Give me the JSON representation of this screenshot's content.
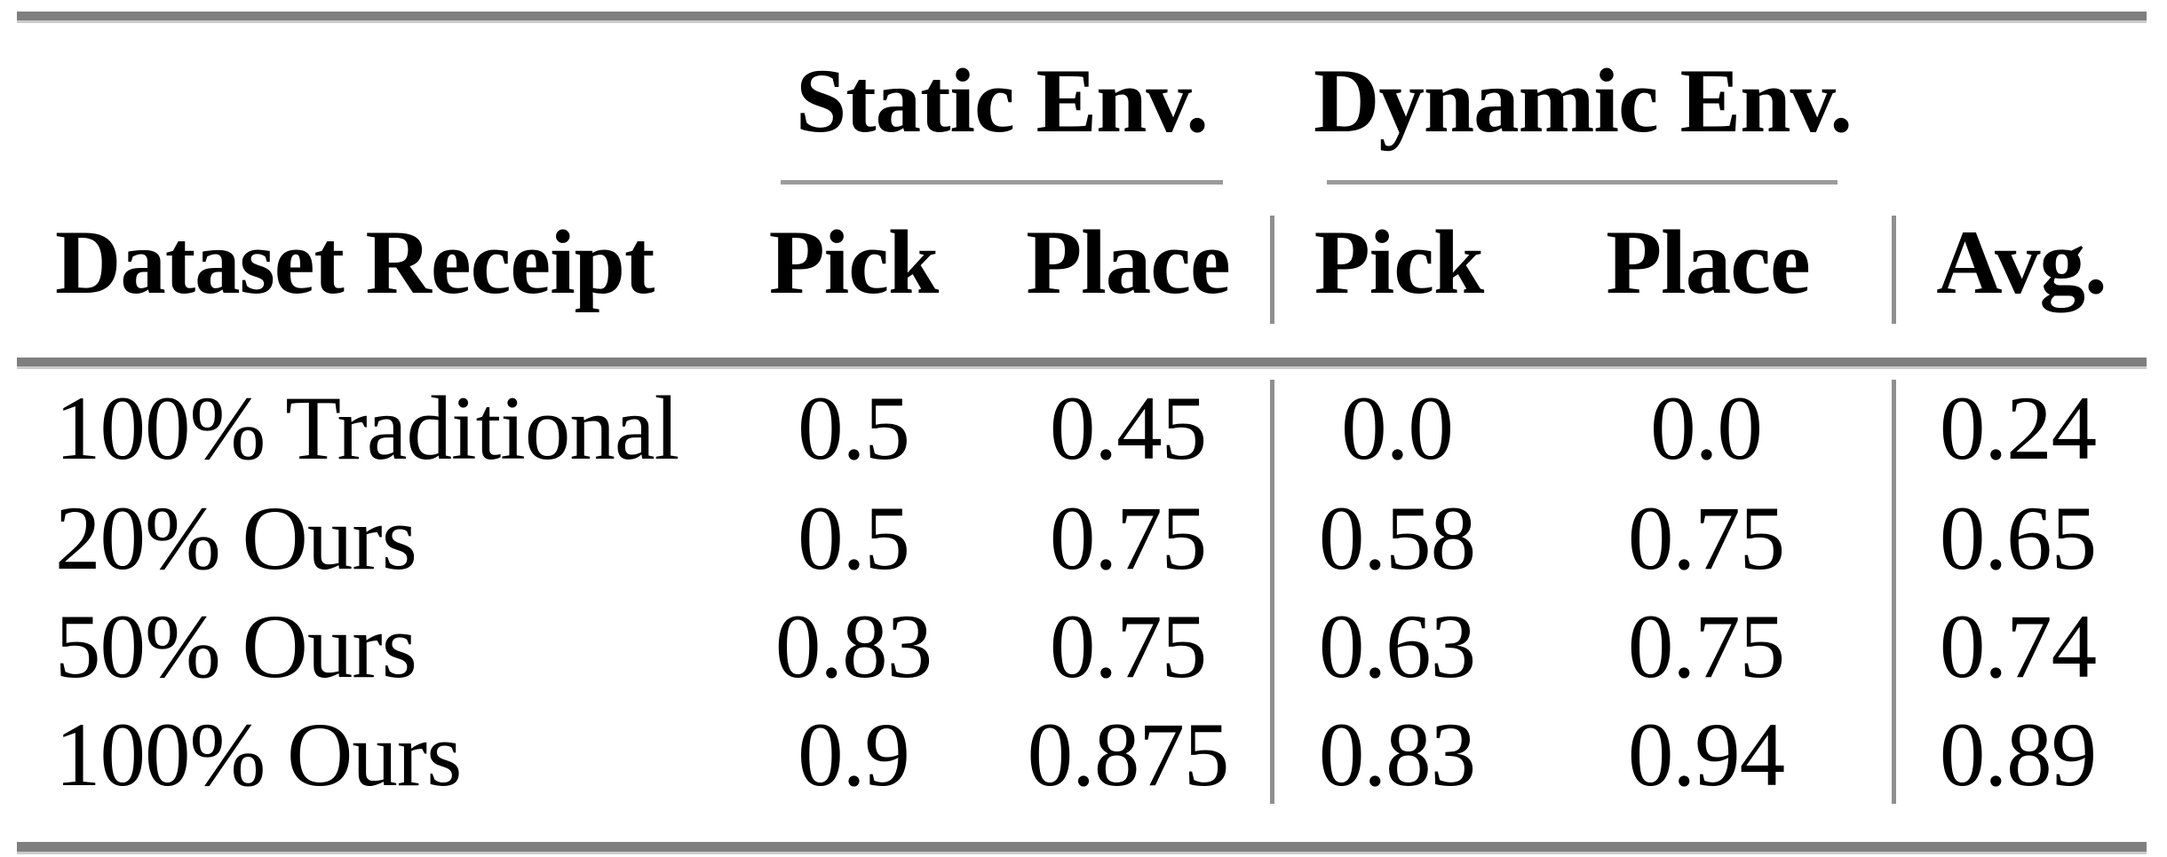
{
  "table": {
    "groups": [
      {
        "label": "Static Env.",
        "columns": [
          "Pick",
          "Place"
        ]
      },
      {
        "label": "Dynamic Env.",
        "columns": [
          "Pick",
          "Place"
        ]
      }
    ],
    "row_label_header": "Dataset Receipt",
    "avg_header": "Avg.",
    "rows": [
      {
        "label": "100% Traditional",
        "values": [
          "0.5",
          "0.45",
          "0.0",
          "0.0",
          "0.24"
        ]
      },
      {
        "label": "20% Ours",
        "values": [
          "0.5",
          "0.75",
          "0.58",
          "0.75",
          "0.65"
        ]
      },
      {
        "label": "50% Ours",
        "values": [
          "0.83",
          "0.75",
          "0.63",
          "0.75",
          "0.74"
        ]
      },
      {
        "label": "100% Ours",
        "values": [
          "0.9",
          "0.875",
          "0.83",
          "0.94",
          "0.89"
        ]
      }
    ]
  },
  "colors": {
    "thick_rule": "#7f7f7f",
    "thin_rule": "#9b9b9b",
    "vertical_rule": "#8f8f8f",
    "text": "#000000",
    "background": "#ffffff"
  }
}
